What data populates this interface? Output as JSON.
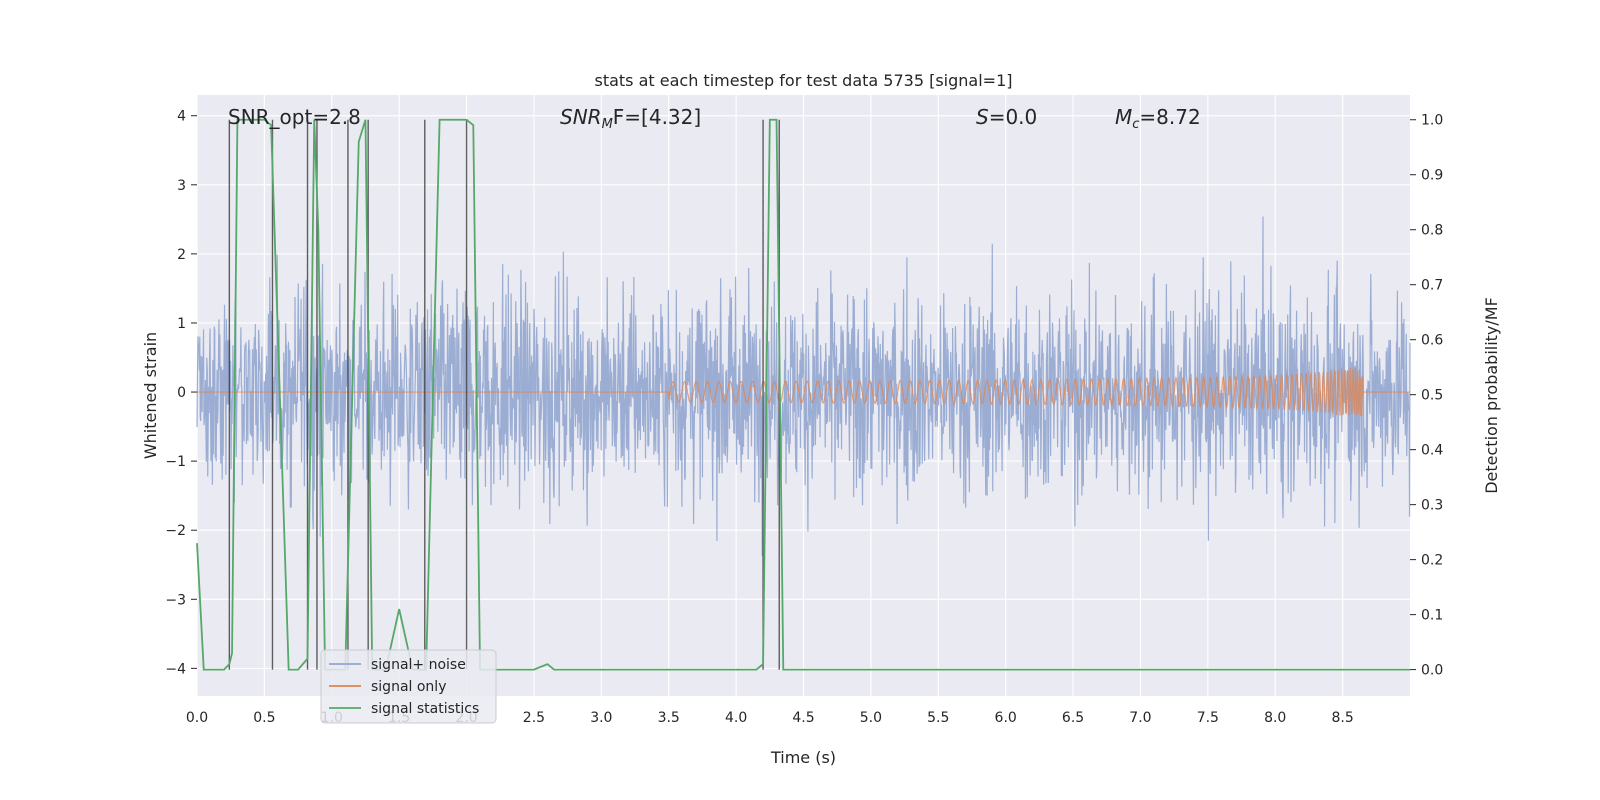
{
  "chart_data": {
    "type": "line",
    "title": "stats at each timestep for test data 5735 [signal=1]",
    "xlabel": "Time (s)",
    "ylabel_left": "Whitened strain",
    "ylabel_right": "Detection probability/MF",
    "xlim": [
      0.0,
      9.0
    ],
    "ylim_left": [
      -4.4,
      4.3
    ],
    "ylim_right": [
      -0.048,
      1.045
    ],
    "x_ticks": [
      "0.0",
      "0.5",
      "1.0",
      "1.5",
      "2.0",
      "2.5",
      "3.0",
      "3.5",
      "4.0",
      "4.5",
      "5.0",
      "5.5",
      "6.0",
      "6.5",
      "7.0",
      "7.5",
      "8.0",
      "8.5"
    ],
    "y_left_ticks": [
      "4",
      "3",
      "2",
      "1",
      "0",
      "−1",
      "−2",
      "−3",
      "−4"
    ],
    "y_right_ticks": [
      "1.0",
      "0.9",
      "0.8",
      "0.7",
      "0.6",
      "0.5",
      "0.4",
      "0.3",
      "0.2",
      "0.1",
      "0.0"
    ],
    "annotations": {
      "snr_opt": "SNR_opt=2.8",
      "snr_mf_label": "SNR",
      "snr_mf_sub": "M",
      "snr_mf_rest": "F=[4.32]",
      "s_label": "S",
      "s_value": "=0.0",
      "mc_label": "M",
      "mc_sub": "c",
      "mc_value": "=8.72"
    },
    "series": [
      {
        "name": "signal+ noise",
        "color": "#92a6cf",
        "description": "whitened strain, noise-like, amplitude within about ±3.9"
      },
      {
        "name": "signal only",
        "color": "#dd8452",
        "description": "chirp growing from 0 to about ±0.3 ending near t=8.65 s"
      },
      {
        "name": "signal statistics",
        "color": "#55a868",
        "axis": "right",
        "x": [
          0.0,
          0.05,
          0.2,
          0.24,
          0.26,
          0.3,
          0.5,
          0.55,
          0.68,
          0.75,
          0.82,
          0.87,
          0.9,
          0.95,
          1.1,
          1.2,
          1.25,
          1.3,
          1.4,
          1.5,
          1.6,
          1.7,
          1.8,
          2.0,
          2.05,
          2.1,
          2.5,
          2.6,
          2.65,
          2.8,
          3.9,
          4.15,
          4.2,
          4.25,
          4.3,
          4.35,
          4.45,
          5.0,
          6.0,
          7.0,
          8.0,
          9.0
        ],
        "values": [
          0.23,
          0.0,
          0.0,
          0.01,
          0.03,
          1.0,
          1.0,
          0.99,
          0.0,
          0.0,
          0.02,
          1.0,
          0.8,
          0.0,
          0.0,
          0.96,
          1.0,
          0.0,
          0.0,
          0.11,
          0.0,
          0.0,
          1.0,
          1.0,
          0.99,
          0.0,
          0.0,
          0.01,
          0.0,
          0.0,
          0.0,
          0.0,
          0.01,
          1.0,
          1.0,
          0.0,
          0.0,
          0.0,
          0.0,
          0.0,
          0.0,
          0.0
        ]
      }
    ],
    "vertical_markers_x": [
      0.24,
      0.56,
      0.82,
      0.89,
      1.12,
      1.27,
      1.69,
      2.0,
      4.2,
      4.32
    ],
    "legend": {
      "position": "lower-left",
      "items": [
        "signal+ noise",
        "signal only",
        "signal statistics"
      ]
    },
    "colors": {
      "plot_bg": "#eaeaf2",
      "grid": "#ffffff",
      "noise": "#92a6cf",
      "signal": "#dd8452",
      "stats": "#55a868",
      "markers": "#3a3a3a"
    }
  }
}
